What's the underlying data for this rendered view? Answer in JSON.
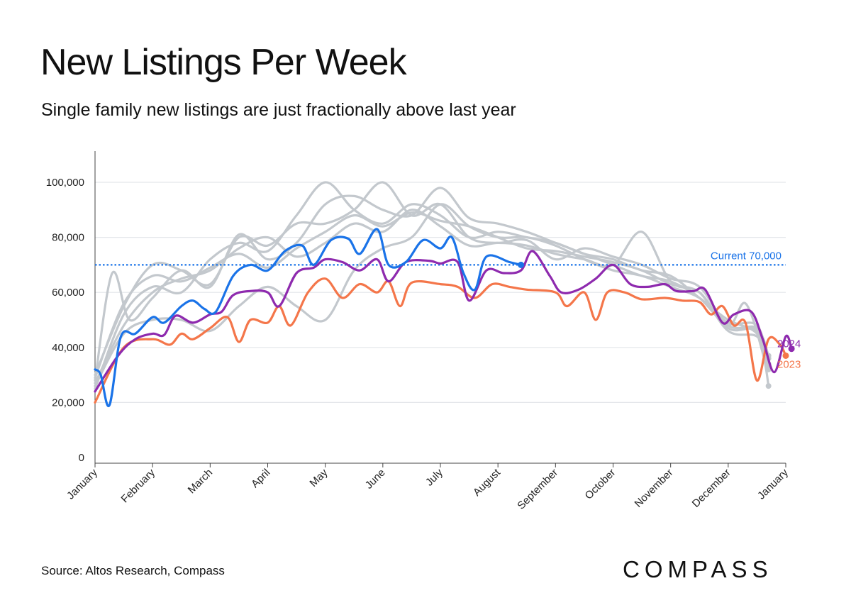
{
  "header": {
    "title": "New Listings Per Week",
    "subtitle": "Single family new listings are just fractionally above last year"
  },
  "footer": {
    "source": "Source: Altos Research, Compass",
    "logo": "COMPASS"
  },
  "colors": {
    "current": "#1a73e8",
    "y2024": "#8e2aae",
    "y2023": "#f4764a",
    "history": "#c3c8cd",
    "grid": "#e3e6ea"
  },
  "chart_data": {
    "type": "line",
    "title": "New Listings Per Week",
    "subtitle": "Single family new listings are just fractionally above last year",
    "xlabel": "",
    "ylabel": "",
    "x_unit": "month",
    "xlim": [
      0,
      12
    ],
    "ylim": [
      0,
      110000
    ],
    "y_ticks": [
      0,
      20000,
      40000,
      60000,
      80000,
      100000
    ],
    "y_tick_labels": [
      "0",
      "20,000",
      "40,000",
      "60,000",
      "80,000",
      "100,000"
    ],
    "x_ticks": [
      0,
      1,
      2,
      3,
      4,
      5,
      6,
      7,
      8,
      9,
      10,
      11,
      12
    ],
    "x_tick_labels": [
      "January",
      "February",
      "March",
      "April",
      "May",
      "June",
      "July",
      "August",
      "September",
      "October",
      "November",
      "December",
      "January"
    ],
    "reference_line": {
      "value": 70000,
      "label": "Current 70,000"
    },
    "end_labels": {
      "y2024": "2024",
      "y2023": "2023"
    },
    "history_series": [
      {
        "name": "history-1",
        "points": [
          [
            0,
            25000
          ],
          [
            0.5,
            52000
          ],
          [
            1,
            62000
          ],
          [
            1.5,
            60000
          ],
          [
            2,
            72000
          ],
          [
            2.5,
            78000
          ],
          [
            3,
            75000
          ],
          [
            3.5,
            88000
          ],
          [
            4,
            100000
          ],
          [
            4.5,
            90000
          ],
          [
            5,
            85000
          ],
          [
            5.5,
            92000
          ],
          [
            6,
            88000
          ],
          [
            6.5,
            80000
          ],
          [
            7,
            82000
          ],
          [
            7.5,
            80000
          ],
          [
            8,
            78000
          ],
          [
            8.5,
            74000
          ],
          [
            9,
            72000
          ],
          [
            9.5,
            68000
          ],
          [
            10,
            66000
          ],
          [
            10.5,
            58000
          ],
          [
            11,
            50000
          ],
          [
            11.5,
            45000
          ],
          [
            11.7,
            33000
          ]
        ]
      },
      {
        "name": "history-2",
        "points": [
          [
            0,
            28000
          ],
          [
            0.3,
            67000
          ],
          [
            0.6,
            50000
          ],
          [
            1,
            58000
          ],
          [
            1.5,
            68000
          ],
          [
            2,
            62000
          ],
          [
            2.5,
            81000
          ],
          [
            3,
            72000
          ],
          [
            3.5,
            78000
          ],
          [
            4,
            92000
          ],
          [
            4.5,
            95000
          ],
          [
            5,
            90000
          ],
          [
            5.5,
            88000
          ],
          [
            6,
            98000
          ],
          [
            6.5,
            87000
          ],
          [
            7,
            85000
          ],
          [
            7.5,
            82000
          ],
          [
            8,
            78000
          ],
          [
            8.5,
            74000
          ],
          [
            9,
            70000
          ],
          [
            9.5,
            66000
          ],
          [
            10,
            64000
          ],
          [
            10.5,
            58000
          ],
          [
            11,
            48000
          ],
          [
            11.3,
            56000
          ],
          [
            11.6,
            38000
          ],
          [
            11.7,
            26000
          ]
        ]
      },
      {
        "name": "history-3",
        "points": [
          [
            0,
            30000
          ],
          [
            0.5,
            55000
          ],
          [
            1,
            70000
          ],
          [
            1.5,
            68000
          ],
          [
            2,
            63000
          ],
          [
            2.5,
            80000
          ],
          [
            3,
            77000
          ],
          [
            3.5,
            85000
          ],
          [
            4,
            85000
          ],
          [
            4.5,
            90000
          ],
          [
            5,
            100000
          ],
          [
            5.5,
            88000
          ],
          [
            6,
            92000
          ],
          [
            6.5,
            80000
          ],
          [
            7,
            78000
          ],
          [
            7.5,
            79000
          ],
          [
            8,
            72000
          ],
          [
            8.5,
            76000
          ],
          [
            9,
            73000
          ],
          [
            9.5,
            70000
          ],
          [
            10,
            65000
          ],
          [
            10.5,
            62000
          ],
          [
            11,
            48000
          ],
          [
            11.5,
            47000
          ],
          [
            11.7,
            37000
          ]
        ]
      },
      {
        "name": "history-4",
        "points": [
          [
            0,
            27000
          ],
          [
            0.5,
            48000
          ],
          [
            1,
            60000
          ],
          [
            1.5,
            65000
          ],
          [
            2,
            68000
          ],
          [
            2.5,
            76000
          ],
          [
            3,
            80000
          ],
          [
            3.5,
            73000
          ],
          [
            4,
            78000
          ],
          [
            4.5,
            85000
          ],
          [
            5,
            82000
          ],
          [
            5.5,
            90000
          ],
          [
            6,
            84000
          ],
          [
            6.5,
            77000
          ],
          [
            7,
            78000
          ],
          [
            7.5,
            77000
          ],
          [
            8,
            74000
          ],
          [
            8.5,
            72000
          ],
          [
            9,
            70000
          ],
          [
            9.5,
            82000
          ],
          [
            10,
            64000
          ],
          [
            10.5,
            60000
          ],
          [
            11,
            46000
          ],
          [
            11.5,
            44000
          ],
          [
            11.7,
            36000
          ]
        ]
      },
      {
        "name": "history-5",
        "points": [
          [
            0,
            26000
          ],
          [
            0.5,
            45000
          ],
          [
            1,
            50000
          ],
          [
            1.5,
            50000
          ],
          [
            2,
            46000
          ],
          [
            2.5,
            55000
          ],
          [
            3,
            62000
          ],
          [
            3.5,
            55000
          ],
          [
            4,
            50000
          ],
          [
            4.5,
            68000
          ],
          [
            5,
            76000
          ],
          [
            5.5,
            80000
          ],
          [
            6,
            92000
          ],
          [
            6.5,
            84000
          ],
          [
            7,
            80000
          ],
          [
            7.5,
            80000
          ],
          [
            8,
            77000
          ],
          [
            8.5,
            72000
          ],
          [
            9,
            68000
          ],
          [
            9.5,
            66000
          ],
          [
            10,
            62000
          ],
          [
            10.5,
            58000
          ],
          [
            11,
            49000
          ],
          [
            11.5,
            48000
          ],
          [
            11.7,
            34000
          ]
        ]
      },
      {
        "name": "history-6",
        "points": [
          [
            0,
            29000
          ],
          [
            0.5,
            56000
          ],
          [
            1,
            66000
          ],
          [
            1.5,
            64000
          ],
          [
            2,
            69000
          ],
          [
            2.5,
            74000
          ],
          [
            3,
            69000
          ],
          [
            3.5,
            76000
          ],
          [
            4,
            82000
          ],
          [
            4.5,
            88000
          ],
          [
            5,
            84000
          ],
          [
            5.5,
            89000
          ],
          [
            6,
            86000
          ],
          [
            6.5,
            84000
          ],
          [
            7,
            80000
          ],
          [
            7.5,
            76000
          ],
          [
            8,
            75000
          ],
          [
            8.5,
            73000
          ],
          [
            9,
            71000
          ],
          [
            9.5,
            68000
          ],
          [
            10,
            63000
          ],
          [
            10.5,
            60000
          ],
          [
            11,
            47000
          ],
          [
            11.5,
            46000
          ],
          [
            11.7,
            32000
          ]
        ]
      }
    ],
    "series": [
      {
        "name": "2023",
        "color_key": "y2023",
        "points": [
          [
            0,
            20000
          ],
          [
            0.5,
            40000
          ],
          [
            1,
            43000
          ],
          [
            1.3,
            41000
          ],
          [
            1.5,
            45000
          ],
          [
            1.7,
            43000
          ],
          [
            2,
            47000
          ],
          [
            2.3,
            51000
          ],
          [
            2.5,
            42000
          ],
          [
            2.7,
            50000
          ],
          [
            3,
            49000
          ],
          [
            3.2,
            55000
          ],
          [
            3.4,
            48000
          ],
          [
            3.7,
            60000
          ],
          [
            4,
            65000
          ],
          [
            4.3,
            58000
          ],
          [
            4.6,
            63000
          ],
          [
            4.9,
            60000
          ],
          [
            5.1,
            64000
          ],
          [
            5.3,
            55000
          ],
          [
            5.5,
            63500
          ],
          [
            6,
            63000
          ],
          [
            6.3,
            62000
          ],
          [
            6.6,
            58000
          ],
          [
            6.9,
            63000
          ],
          [
            7.2,
            62000
          ],
          [
            7.5,
            61000
          ],
          [
            8,
            60000
          ],
          [
            8.2,
            55000
          ],
          [
            8.5,
            60000
          ],
          [
            8.7,
            50000
          ],
          [
            8.9,
            60000
          ],
          [
            9.2,
            60000
          ],
          [
            9.5,
            57500
          ],
          [
            9.9,
            58000
          ],
          [
            10.2,
            57000
          ],
          [
            10.5,
            56500
          ],
          [
            10.7,
            52000
          ],
          [
            10.9,
            55000
          ],
          [
            11.1,
            48000
          ],
          [
            11.3,
            49000
          ],
          [
            11.5,
            28000
          ],
          [
            11.7,
            43000
          ],
          [
            11.9,
            41000
          ],
          [
            12,
            37000
          ]
        ]
      },
      {
        "name": "2024",
        "color_key": "y2024",
        "points": [
          [
            0,
            24000
          ],
          [
            0.4,
            37000
          ],
          [
            0.7,
            43000
          ],
          [
            1,
            45000
          ],
          [
            1.2,
            44500
          ],
          [
            1.4,
            51500
          ],
          [
            1.7,
            49000
          ],
          [
            2,
            52000
          ],
          [
            2.2,
            53000
          ],
          [
            2.4,
            59000
          ],
          [
            2.7,
            60500
          ],
          [
            3,
            60000
          ],
          [
            3.2,
            55000
          ],
          [
            3.5,
            67000
          ],
          [
            3.8,
            69000
          ],
          [
            4,
            72000
          ],
          [
            4.3,
            71000
          ],
          [
            4.6,
            68000
          ],
          [
            4.9,
            72000
          ],
          [
            5.1,
            64000
          ],
          [
            5.4,
            71000
          ],
          [
            5.8,
            71500
          ],
          [
            6,
            70500
          ],
          [
            6.3,
            71000
          ],
          [
            6.5,
            57000
          ],
          [
            6.8,
            68000
          ],
          [
            7.1,
            67000
          ],
          [
            7.4,
            68000
          ],
          [
            7.6,
            75000
          ],
          [
            7.9,
            66000
          ],
          [
            8.1,
            60000
          ],
          [
            8.4,
            61000
          ],
          [
            8.7,
            65000
          ],
          [
            9,
            70000
          ],
          [
            9.3,
            63000
          ],
          [
            9.6,
            62000
          ],
          [
            9.9,
            63000
          ],
          [
            10.1,
            60500
          ],
          [
            10.4,
            60500
          ],
          [
            10.6,
            61000
          ],
          [
            10.9,
            49000
          ],
          [
            11.1,
            52000
          ],
          [
            11.4,
            53000
          ],
          [
            11.6,
            43000
          ],
          [
            11.8,
            31000
          ],
          [
            12,
            44000
          ],
          [
            12.1,
            39500
          ]
        ]
      },
      {
        "name": "Current (2025)",
        "color_key": "current",
        "points": [
          [
            0,
            32000
          ],
          [
            0.1,
            30000
          ],
          [
            0.25,
            19000
          ],
          [
            0.45,
            44000
          ],
          [
            0.7,
            45000
          ],
          [
            1,
            51000
          ],
          [
            1.2,
            49000
          ],
          [
            1.5,
            55000
          ],
          [
            1.7,
            57000
          ],
          [
            1.9,
            54000
          ],
          [
            2.1,
            53000
          ],
          [
            2.4,
            66000
          ],
          [
            2.7,
            70000
          ],
          [
            3,
            68000
          ],
          [
            3.3,
            75000
          ],
          [
            3.6,
            77000
          ],
          [
            3.8,
            70000
          ],
          [
            4.1,
            79000
          ],
          [
            4.4,
            79500
          ],
          [
            4.6,
            74000
          ],
          [
            4.9,
            83000
          ],
          [
            5.1,
            70000
          ],
          [
            5.4,
            71000
          ],
          [
            5.7,
            79000
          ],
          [
            6,
            76000
          ],
          [
            6.2,
            80000
          ],
          [
            6.4,
            67000
          ],
          [
            6.6,
            61000
          ],
          [
            6.8,
            73000
          ],
          [
            7.2,
            71000
          ],
          [
            7.4,
            70000
          ]
        ]
      }
    ]
  }
}
